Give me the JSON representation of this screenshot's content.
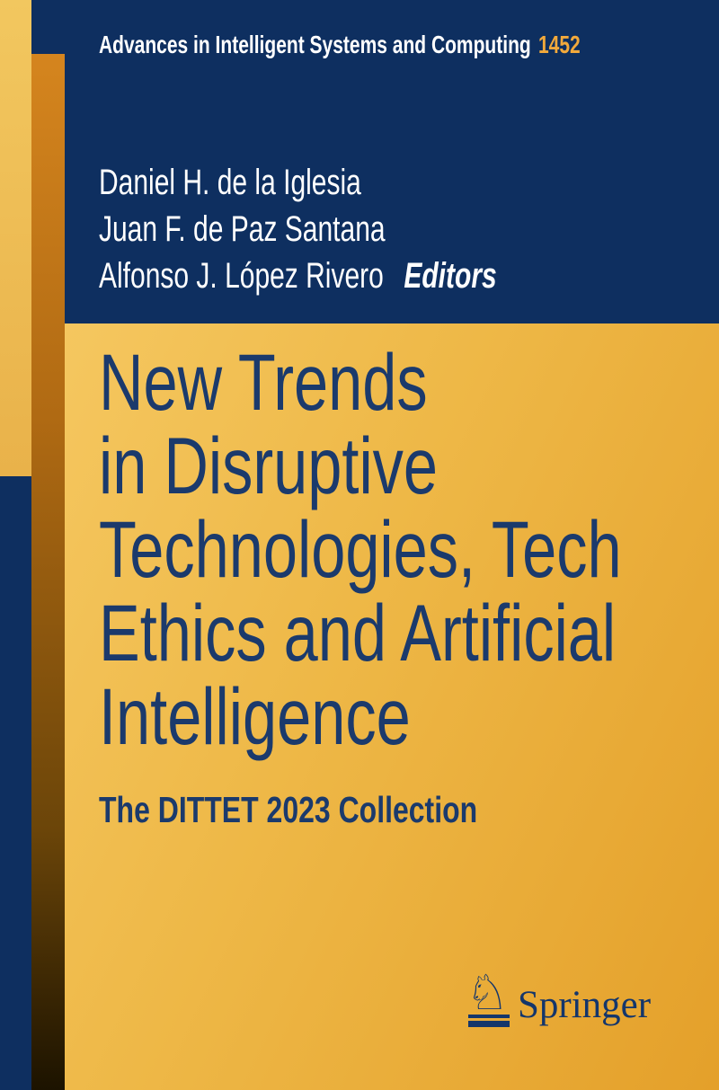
{
  "series": {
    "title": "Advances in Intelligent Systems and Computing",
    "volume": "1452"
  },
  "editors": {
    "names": [
      "Daniel H. de la Iglesia",
      "Juan F. de Paz Santana",
      "Alfonso J. López Rivero"
    ],
    "label": "Editors"
  },
  "book": {
    "title_lines": [
      "New Trends",
      "in Disruptive",
      "Technologies, Tech",
      "Ethics and Artificial",
      "Intelligence"
    ],
    "subtitle": "The DITTET 2023 Collection"
  },
  "publisher": {
    "name": "Springer",
    "knight_glyph": "♘",
    "logo_icon": "chess-knight-icon"
  },
  "colors": {
    "navy_background": "#0e2f60",
    "title_navy": "#1b3a6c",
    "logo_navy": "#14366b",
    "volume_orange": "#f2a93b",
    "cover_gold_light": "#f6c963",
    "cover_gold_dark": "#e4a02a",
    "stripe_light_gold": "#f2c75f",
    "stripe_orange_top": "#d5851e",
    "stripe_orange_bottom": "#1c1300",
    "series_text_white": "#ffffff"
  }
}
